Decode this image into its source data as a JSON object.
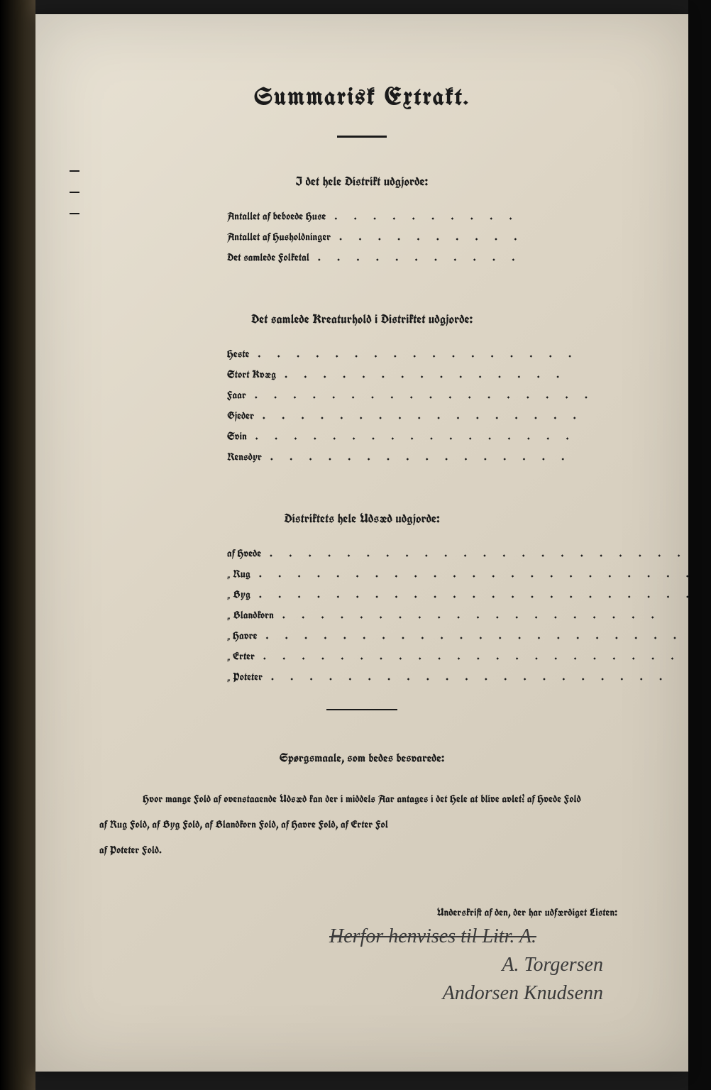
{
  "title": "Summarisk Extrakt.",
  "section1": {
    "header": "I det hele Distrikt udgjorde:",
    "items": [
      {
        "label": "Antallet af beboede Huse",
        "dots": ". . . . . . . . . ."
      },
      {
        "label": "Antallet af Husholdninger",
        "dots": ". . . . . . . . . ."
      },
      {
        "label": "Det samlede Folketal",
        "dots": ". . . . . . . . . . ."
      }
    ]
  },
  "section2": {
    "header": "Det samlede Kreaturhold i Distriktet udgjorde:",
    "items": [
      {
        "label": "Heste",
        "dots": ". . . . . . . . . . . . . . . . ."
      },
      {
        "label": "Stort Kvæg",
        "dots": ". . . . . . . . . . . . . . ."
      },
      {
        "label": "Faar",
        "dots": ". . . . . . . . . . . . . . . . . ."
      },
      {
        "label": "Gjeder",
        "dots": ". . . . . . . . . . . . . . . . ."
      },
      {
        "label": "Svin",
        "dots": ". . . . . . . . . . . . . . . . ."
      },
      {
        "label": "Rensdyr",
        "dots": ". . . . . . . . . . . . . . . ."
      }
    ]
  },
  "section3": {
    "header": "Distriktets hele Udsæd udgjorde:",
    "items": [
      {
        "label": "af Hvede",
        "dots": ". . . . . . . . . . . . . . . . . . . . . ."
      },
      {
        "label": "„ Rug",
        "dots": ". . . . . . . . . . . . . . . . . . . . . . ."
      },
      {
        "label": "„ Byg",
        "dots": ". . . . . . . . . . . . . . . . . . . . . . ."
      },
      {
        "label": "„ Blandkorn",
        "dots": ". . . . . . . . . . . . . . . . . . . ."
      },
      {
        "label": "„ Havre",
        "dots": ". . . . . . . . . . . . . . . . . . . . . ."
      },
      {
        "label": "„ Erter",
        "dots": ". . . . . . . . . . . . . . . . . . . . . ."
      },
      {
        "label": "„ Poteter",
        "dots": ". . . . . . . . . . . . . . . . . . . . ."
      }
    ]
  },
  "questions": {
    "header": "Spørgsmaale, som bedes besvarede:",
    "line1": "Hvor mange Fold af ovenstaaende Udsæd kan der i middels Aar antages i det Hele at blive avlet?   af Hvede             Fold",
    "line2": "af Rug              Fold, af Byg              Fold, af Blandkorn              Fold, af Havre              Fold, af Erter              Fol",
    "line3": "af Poteter              Fold."
  },
  "signature": {
    "label": "Underskrift af den, der har udfærdiget Listen:",
    "hand1": "Herfor henvises til Litr. A.",
    "hand2": "A. Torgersen",
    "hand3": "Andorsen Knudsenn"
  },
  "colors": {
    "paper": "#ddd5c5",
    "ink": "#1a1a1a",
    "binding": "#0a0a0a"
  }
}
